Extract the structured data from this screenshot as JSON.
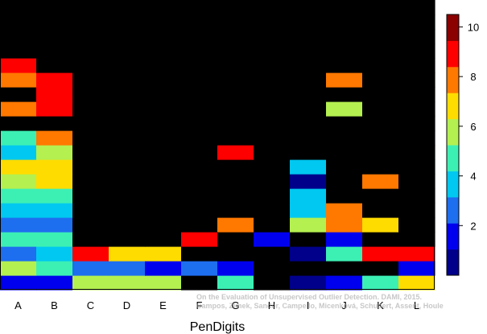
{
  "chart_data": {
    "type": "heatmap",
    "title": "",
    "xlabel": "PenDigits",
    "ylabel": "",
    "categories": [
      "A",
      "B",
      "C",
      "D",
      "E",
      "F",
      "G",
      "H",
      "I",
      "J",
      "K",
      "L"
    ],
    "n_rows": 20,
    "colorbar": {
      "min": 0,
      "max": 10.5,
      "ticks": [
        2,
        4,
        6,
        8,
        10
      ],
      "colors": [
        "#00008b",
        "#0000ee",
        "#1e6ef0",
        "#00c8f0",
        "#3cf0b4",
        "#b4f050",
        "#ffdc00",
        "#ff7800",
        "#ff0000",
        "#8b0000"
      ]
    },
    "matrix": [
      [
        1,
        1,
        5,
        5,
        5,
        10,
        4,
        10,
        0,
        1,
        4,
        6
      ],
      [
        5,
        4,
        2,
        2,
        1,
        2,
        1,
        10,
        10,
        10,
        10,
        1
      ],
      [
        2,
        3,
        8,
        6,
        6,
        10,
        10,
        10,
        0,
        4,
        8,
        8
      ],
      [
        4,
        4,
        10,
        10,
        10,
        8,
        10,
        1,
        10,
        1,
        10,
        10
      ],
      [
        2,
        2,
        10,
        10,
        10,
        10,
        7,
        10,
        5,
        7,
        6,
        10
      ],
      [
        3,
        3,
        10,
        10,
        10,
        10,
        10,
        10,
        3,
        7,
        10,
        10
      ],
      [
        4,
        4,
        10,
        10,
        10,
        10,
        10,
        10,
        3,
        10,
        10,
        10
      ],
      [
        5,
        6,
        10,
        10,
        10,
        10,
        10,
        10,
        0,
        10,
        7,
        10
      ],
      [
        6,
        6,
        10,
        10,
        10,
        10,
        10,
        10,
        3,
        10,
        10,
        10
      ],
      [
        3,
        5,
        10,
        10,
        10,
        10,
        8,
        10,
        10,
        10,
        10,
        10
      ],
      [
        4,
        7,
        10,
        10,
        10,
        10,
        10,
        10,
        10,
        10,
        10,
        10
      ],
      [
        10,
        10,
        10,
        10,
        10,
        10,
        10,
        10,
        10,
        10,
        10,
        10
      ],
      [
        7,
        8,
        10,
        10,
        10,
        10,
        10,
        10,
        10,
        5,
        10,
        10
      ],
      [
        10,
        8,
        10,
        10,
        10,
        10,
        10,
        10,
        10,
        10,
        10,
        10
      ],
      [
        7,
        8,
        10,
        10,
        10,
        10,
        10,
        10,
        10,
        7,
        10,
        10
      ],
      [
        8,
        10,
        10,
        10,
        10,
        10,
        10,
        10,
        10,
        10,
        10,
        10
      ],
      [
        10,
        10,
        10,
        10,
        10,
        10,
        10,
        10,
        10,
        10,
        10,
        10
      ],
      [
        10,
        10,
        10,
        10,
        10,
        10,
        10,
        10,
        10,
        10,
        10,
        10
      ],
      [
        10,
        10,
        10,
        10,
        10,
        10,
        10,
        10,
        10,
        10,
        10,
        10
      ],
      [
        10,
        10,
        10,
        10,
        10,
        10,
        10,
        10,
        10,
        10,
        10,
        10
      ]
    ]
  },
  "watermark": {
    "line1": "On the Evaluation of Unsupervised Outlier Detection. DAMI, 2015.",
    "line2": "Campos, Zimek, Sander, Campello, Micenková, Schubert, Assent, Houle"
  }
}
